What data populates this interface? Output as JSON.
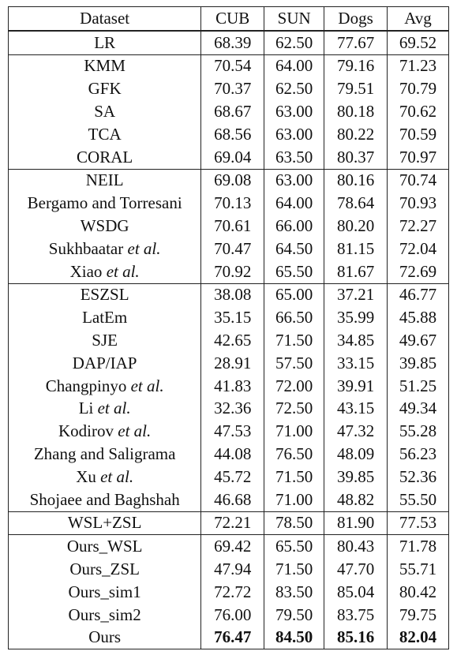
{
  "header": {
    "dataset": "Dataset",
    "cub": "CUB",
    "sun": "SUN",
    "dogs": "Dogs",
    "avg": "Avg"
  },
  "rows": [
    {
      "name": "LR",
      "suffix": "",
      "cub": "68.39",
      "sun": "62.50",
      "dogs": "77.67",
      "avg": "69.52"
    },
    {
      "name": "KMM",
      "suffix": "",
      "cub": "70.54",
      "sun": "64.00",
      "dogs": "79.16",
      "avg": "71.23"
    },
    {
      "name": "GFK",
      "suffix": "",
      "cub": "70.37",
      "sun": "62.50",
      "dogs": "79.51",
      "avg": "70.79"
    },
    {
      "name": "SA",
      "suffix": "",
      "cub": "68.67",
      "sun": "63.00",
      "dogs": "80.18",
      "avg": "70.62"
    },
    {
      "name": "TCA",
      "suffix": "",
      "cub": "68.56",
      "sun": "63.00",
      "dogs": "80.22",
      "avg": "70.59"
    },
    {
      "name": "CORAL",
      "suffix": "",
      "cub": "69.04",
      "sun": "63.50",
      "dogs": "80.37",
      "avg": "70.97"
    },
    {
      "name": "NEIL",
      "suffix": "",
      "cub": "69.08",
      "sun": "63.00",
      "dogs": "80.16",
      "avg": "70.74"
    },
    {
      "name": "Bergamo and Torresani",
      "suffix": "",
      "cub": "70.13",
      "sun": "64.00",
      "dogs": "78.64",
      "avg": "70.93"
    },
    {
      "name": "WSDG",
      "suffix": "",
      "cub": "70.61",
      "sun": "66.00",
      "dogs": "80.20",
      "avg": "72.27"
    },
    {
      "name": "Sukhbaatar ",
      "suffix": "et al.",
      "cub": "70.47",
      "sun": "64.50",
      "dogs": "81.15",
      "avg": "72.04"
    },
    {
      "name": "Xiao ",
      "suffix": "et al.",
      "cub": "70.92",
      "sun": "65.50",
      "dogs": "81.67",
      "avg": "72.69"
    },
    {
      "name": "ESZSL",
      "suffix": "",
      "cub": "38.08",
      "sun": "65.00",
      "dogs": "37.21",
      "avg": "46.77"
    },
    {
      "name": "LatEm",
      "suffix": "",
      "cub": "35.15",
      "sun": "66.50",
      "dogs": "35.99",
      "avg": "45.88"
    },
    {
      "name": "SJE",
      "suffix": "",
      "cub": "42.65",
      "sun": "71.50",
      "dogs": "34.85",
      "avg": "49.67"
    },
    {
      "name": "DAP/IAP",
      "suffix": "",
      "cub": "28.91",
      "sun": "57.50",
      "dogs": "33.15",
      "avg": "39.85"
    },
    {
      "name": "Changpinyo ",
      "suffix": "et al.",
      "cub": "41.83",
      "sun": "72.00",
      "dogs": "39.91",
      "avg": "51.25"
    },
    {
      "name": "Li ",
      "suffix": "et al.",
      "cub": "32.36",
      "sun": "72.50",
      "dogs": "43.15",
      "avg": "49.34"
    },
    {
      "name": "Kodirov ",
      "suffix": "et al.",
      "cub": "47.53",
      "sun": "71.00",
      "dogs": "47.32",
      "avg": "55.28"
    },
    {
      "name": "Zhang and Saligrama",
      "suffix": "",
      "cub": "44.08",
      "sun": "76.50",
      "dogs": "48.09",
      "avg": "56.23"
    },
    {
      "name": "Xu ",
      "suffix": "et al.",
      "cub": "45.72",
      "sun": "71.50",
      "dogs": "39.85",
      "avg": "52.36"
    },
    {
      "name": "Shojaee and Baghshah",
      "suffix": "",
      "cub": "46.68",
      "sun": "71.00",
      "dogs": "48.82",
      "avg": "55.50"
    },
    {
      "name": "WSL+ZSL",
      "suffix": "",
      "cub": "72.21",
      "sun": "78.50",
      "dogs": "81.90",
      "avg": "77.53"
    },
    {
      "name": "Ours_WSL",
      "suffix": "",
      "cub": "69.42",
      "sun": "65.50",
      "dogs": "80.43",
      "avg": "71.78"
    },
    {
      "name": "Ours_ZSL",
      "suffix": "",
      "cub": "47.94",
      "sun": "71.50",
      "dogs": "47.70",
      "avg": "55.71"
    },
    {
      "name": "Ours_sim1",
      "suffix": "",
      "cub": "72.72",
      "sun": "83.50",
      "dogs": "85.04",
      "avg": "80.42"
    },
    {
      "name": "Ours_sim2",
      "suffix": "",
      "cub": "76.00",
      "sun": "79.50",
      "dogs": "83.75",
      "avg": "79.75"
    },
    {
      "name": "Ours",
      "suffix": "",
      "cub": "76.47",
      "sun": "84.50",
      "dogs": "85.16",
      "avg": "82.04"
    }
  ]
}
